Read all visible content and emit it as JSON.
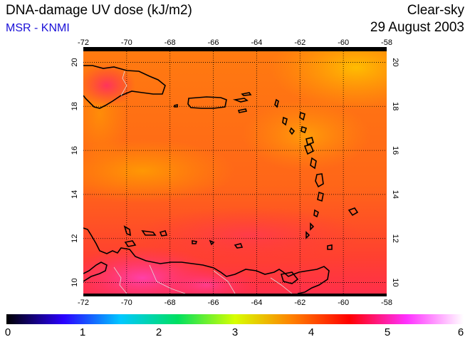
{
  "header": {
    "title": "DNA-damage UV dose (kJ/m2)",
    "source": "MSR - KNMI",
    "condition": "Clear-sky",
    "date": "29 August 2003"
  },
  "map": {
    "lon_ticks": [
      -72,
      -70,
      -68,
      -66,
      -64,
      -62,
      -60,
      -58
    ],
    "lat_ticks": [
      20,
      18,
      16,
      14,
      12,
      10
    ],
    "lon_range": [
      -72,
      -58
    ],
    "lat_range": [
      9.5,
      20.5
    ],
    "grid": true,
    "field_colors": {
      "low": "#ffb000",
      "mid": "#ff7a10",
      "high": "#ff2f4a",
      "peak": "#ff3fa0"
    },
    "coastline_color": "#000000",
    "border_color": "#d8d8d8"
  },
  "colorbar": {
    "ticks": [
      "0",
      "1",
      "2",
      "3",
      "4",
      "5",
      "6"
    ],
    "range": [
      0,
      6
    ],
    "stops": [
      "#000000",
      "#2a00ff",
      "#00c8ff",
      "#00e060",
      "#d8ff00",
      "#ff8000",
      "#ff0000",
      "#ff30ff",
      "#ffffff"
    ]
  }
}
